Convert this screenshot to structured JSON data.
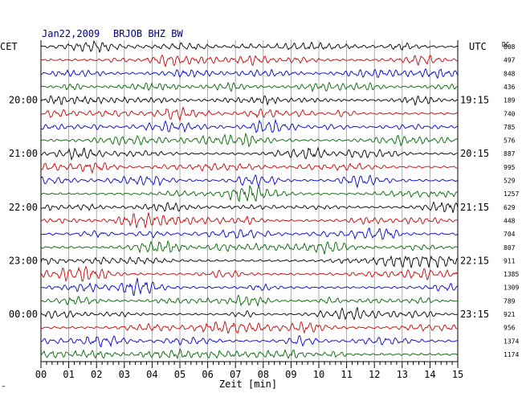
{
  "header": {
    "date": "Jan22,2009",
    "station": "BRJOB BHZ BW"
  },
  "left_label": "CET",
  "right_label": "UTC",
  "dc_label": "DC",
  "footer_mark": "‴",
  "chart_data": {
    "type": "line",
    "title": "Jan22,2009   BRJOB BHZ BW",
    "xlabel": "Zeit [min]",
    "xlim": [
      0,
      15
    ],
    "x_ticks": [
      "00",
      "01",
      "02",
      "03",
      "04",
      "05",
      "06",
      "07",
      "08",
      "09",
      "10",
      "11",
      "12",
      "13",
      "14",
      "15"
    ],
    "trace_count": 24,
    "trace_colors": [
      "#000000",
      "#cc0000",
      "#0000cc",
      "#006600"
    ],
    "cet_hour_labels": [
      {
        "trace": 4,
        "label": "20:00"
      },
      {
        "trace": 8,
        "label": "21:00"
      },
      {
        "trace": 12,
        "label": "22:00"
      },
      {
        "trace": 16,
        "label": "23:00"
      },
      {
        "trace": 20,
        "label": "00:00"
      }
    ],
    "utc_hour_labels": [
      {
        "trace": 4,
        "label": "19:15"
      },
      {
        "trace": 8,
        "label": "20:15"
      },
      {
        "trace": 12,
        "label": "21:15"
      },
      {
        "trace": 16,
        "label": "22:15"
      },
      {
        "trace": 20,
        "label": "23:15"
      }
    ],
    "dc_values": [
      808,
      497,
      848,
      436,
      189,
      740,
      785,
      576,
      887,
      995,
      529,
      1257,
      629,
      448,
      704,
      807,
      911,
      1385,
      1309,
      789,
      921,
      956,
      1374,
      1174
    ],
    "grid": true
  }
}
